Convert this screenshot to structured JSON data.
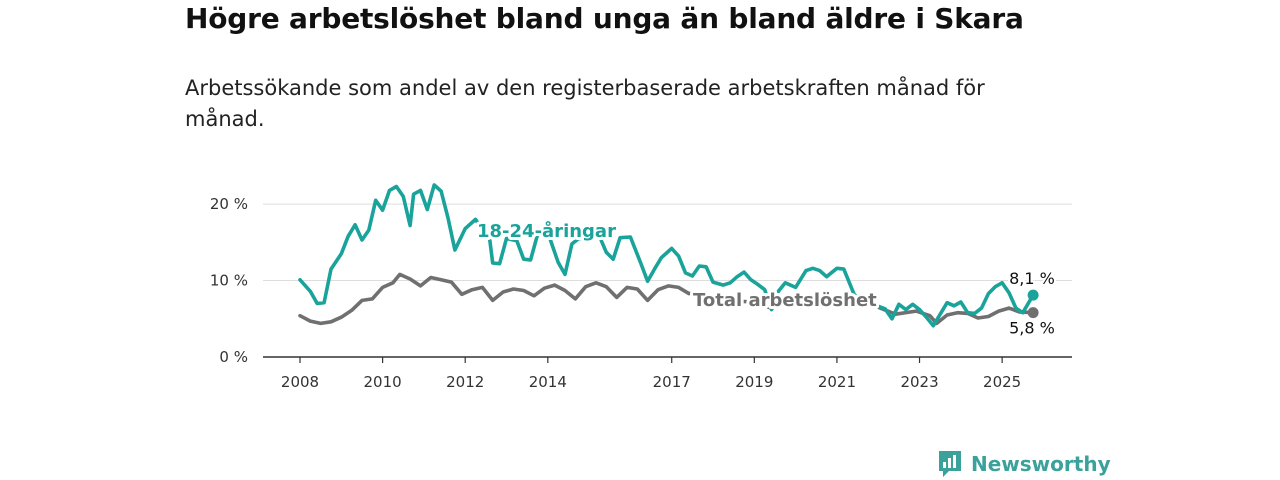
{
  "title": "Högre arbetslöshet bland unga än bland äldre i Skara",
  "subtitle": "Arbetssökande som andel av den registerbaserade arbetskraften månad för månad.",
  "logo_text": "Newsworthy",
  "colors": {
    "youth": "#1aa39a",
    "total": "#707070",
    "grid": "#dddddd",
    "axis": "#333333"
  },
  "chart_data": {
    "type": "line",
    "title": "",
    "xlabel": "",
    "ylabel": "",
    "x_ticks": [
      "2008",
      "2010",
      "2012",
      "2014",
      "2017",
      "2019",
      "2021",
      "2023",
      "2025"
    ],
    "y_ticks": [
      "0 %",
      "10 %",
      "20 %"
    ],
    "ylim": [
      0,
      22.5
    ],
    "xlim": [
      "2008-01",
      "2025-12"
    ],
    "grid": true,
    "series": [
      {
        "name": "18-24-åringar",
        "end_label": "8,1 %",
        "points": [
          [
            "2008-01",
            10.1
          ],
          [
            "2008-04",
            8.6
          ],
          [
            "2008-06",
            7.0
          ],
          [
            "2008-08",
            7.1
          ],
          [
            "2008-10",
            11.5
          ],
          [
            "2009-01",
            13.5
          ],
          [
            "2009-03",
            15.8
          ],
          [
            "2009-05",
            17.3
          ],
          [
            "2009-07",
            15.3
          ],
          [
            "2009-09",
            16.6
          ],
          [
            "2009-11",
            20.5
          ],
          [
            "2010-01",
            19.2
          ],
          [
            "2010-03",
            21.8
          ],
          [
            "2010-05",
            22.3
          ],
          [
            "2010-07",
            21.0
          ],
          [
            "2010-09",
            17.2
          ],
          [
            "2010-10",
            21.3
          ],
          [
            "2010-12",
            21.8
          ],
          [
            "2011-02",
            19.3
          ],
          [
            "2011-04",
            22.5
          ],
          [
            "2011-06",
            21.7
          ],
          [
            "2011-08",
            18.2
          ],
          [
            "2011-10",
            14.0
          ],
          [
            "2012-01",
            16.8
          ],
          [
            "2012-04",
            18.0
          ],
          [
            "2012-06",
            16.7
          ],
          [
            "2012-08",
            15.8
          ],
          [
            "2012-09",
            12.3
          ],
          [
            "2012-11",
            12.2
          ],
          [
            "2013-01",
            15.5
          ],
          [
            "2013-04",
            15.2
          ],
          [
            "2013-06",
            12.8
          ],
          [
            "2013-08",
            12.7
          ],
          [
            "2013-10",
            16.0
          ],
          [
            "2014-01",
            16.3
          ],
          [
            "2014-04",
            12.4
          ],
          [
            "2014-06",
            10.8
          ],
          [
            "2014-08",
            14.8
          ],
          [
            "2014-10",
            15.5
          ],
          [
            "2015-01",
            15.5
          ],
          [
            "2015-04",
            15.8
          ],
          [
            "2015-06",
            13.7
          ],
          [
            "2015-08",
            12.8
          ],
          [
            "2015-10",
            15.6
          ],
          [
            "2016-01",
            15.7
          ],
          [
            "2016-04",
            12.3
          ],
          [
            "2016-06",
            9.9
          ],
          [
            "2016-08",
            11.5
          ],
          [
            "2016-10",
            13.0
          ],
          [
            "2017-01",
            14.2
          ],
          [
            "2017-03",
            13.2
          ],
          [
            "2017-05",
            11.0
          ],
          [
            "2017-07",
            10.6
          ],
          [
            "2017-09",
            11.9
          ],
          [
            "2017-11",
            11.8
          ],
          [
            "2018-01",
            9.8
          ],
          [
            "2018-04",
            9.4
          ],
          [
            "2018-06",
            9.7
          ],
          [
            "2018-08",
            10.5
          ],
          [
            "2018-10",
            11.1
          ],
          [
            "2018-12",
            10.1
          ],
          [
            "2019-02",
            9.5
          ],
          [
            "2019-04",
            8.8
          ],
          [
            "2019-06",
            6.2
          ],
          [
            "2019-08",
            8.6
          ],
          [
            "2019-10",
            9.7
          ],
          [
            "2020-01",
            9.1
          ],
          [
            "2020-04",
            11.3
          ],
          [
            "2020-06",
            11.6
          ],
          [
            "2020-08",
            11.3
          ],
          [
            "2020-10",
            10.5
          ],
          [
            "2021-01",
            11.6
          ],
          [
            "2021-03",
            11.5
          ],
          [
            "2021-06",
            8.2
          ],
          [
            "2021-09",
            6.9
          ],
          [
            "2021-12",
            6.8
          ],
          [
            "2022-03",
            6.3
          ],
          [
            "2022-05",
            5.0
          ],
          [
            "2022-07",
            6.9
          ],
          [
            "2022-09",
            6.2
          ],
          [
            "2022-11",
            6.9
          ],
          [
            "2023-01",
            6.2
          ],
          [
            "2023-03",
            5.2
          ],
          [
            "2023-05",
            4.1
          ],
          [
            "2023-07",
            5.6
          ],
          [
            "2023-09",
            7.1
          ],
          [
            "2023-11",
            6.7
          ],
          [
            "2024-01",
            7.2
          ],
          [
            "2024-03",
            5.8
          ],
          [
            "2024-05",
            5.7
          ],
          [
            "2024-07",
            6.4
          ],
          [
            "2024-09",
            8.3
          ],
          [
            "2024-11",
            9.2
          ],
          [
            "2025-01",
            9.7
          ],
          [
            "2025-03",
            8.4
          ],
          [
            "2025-05",
            6.4
          ],
          [
            "2025-07",
            5.8
          ],
          [
            "2025-10",
            8.1
          ]
        ]
      },
      {
        "name": "Total arbetslöshet",
        "end_label": "5,8 %",
        "points": [
          [
            "2008-01",
            5.4
          ],
          [
            "2008-04",
            4.7
          ],
          [
            "2008-07",
            4.4
          ],
          [
            "2008-10",
            4.6
          ],
          [
            "2009-01",
            5.2
          ],
          [
            "2009-04",
            6.1
          ],
          [
            "2009-07",
            7.4
          ],
          [
            "2009-10",
            7.6
          ],
          [
            "2010-01",
            9.1
          ],
          [
            "2010-04",
            9.7
          ],
          [
            "2010-06",
            10.8
          ],
          [
            "2010-09",
            10.2
          ],
          [
            "2010-12",
            9.3
          ],
          [
            "2011-03",
            10.4
          ],
          [
            "2011-06",
            10.1
          ],
          [
            "2011-09",
            9.8
          ],
          [
            "2011-12",
            8.2
          ],
          [
            "2012-03",
            8.8
          ],
          [
            "2012-06",
            9.1
          ],
          [
            "2012-09",
            7.4
          ],
          [
            "2012-12",
            8.5
          ],
          [
            "2013-03",
            8.9
          ],
          [
            "2013-06",
            8.7
          ],
          [
            "2013-09",
            8.0
          ],
          [
            "2013-12",
            9.0
          ],
          [
            "2014-03",
            9.4
          ],
          [
            "2014-06",
            8.7
          ],
          [
            "2014-09",
            7.6
          ],
          [
            "2014-12",
            9.2
          ],
          [
            "2015-03",
            9.7
          ],
          [
            "2015-06",
            9.2
          ],
          [
            "2015-09",
            7.8
          ],
          [
            "2015-12",
            9.1
          ],
          [
            "2016-03",
            8.9
          ],
          [
            "2016-06",
            7.4
          ],
          [
            "2016-09",
            8.8
          ],
          [
            "2016-12",
            9.3
          ],
          [
            "2017-03",
            9.1
          ],
          [
            "2017-06",
            8.3
          ],
          [
            "2017-09",
            8.5
          ],
          [
            "2017-12",
            8.0
          ],
          [
            "2018-06",
            7.4
          ],
          [
            "2018-12",
            7.2
          ],
          [
            "2019-06",
            6.4
          ],
          [
            "2019-12",
            7.3
          ],
          [
            "2020-06",
            7.3
          ],
          [
            "2020-12",
            7.6
          ],
          [
            "2021-06",
            7.3
          ],
          [
            "2021-12",
            6.7
          ],
          [
            "2022-06",
            5.6
          ],
          [
            "2022-12",
            6.0
          ],
          [
            "2023-04",
            5.4
          ],
          [
            "2023-06",
            4.4
          ],
          [
            "2023-09",
            5.5
          ],
          [
            "2023-12",
            5.8
          ],
          [
            "2024-03",
            5.7
          ],
          [
            "2024-06",
            5.1
          ],
          [
            "2024-09",
            5.3
          ],
          [
            "2024-12",
            6.0
          ],
          [
            "2025-03",
            6.4
          ],
          [
            "2025-06",
            5.9
          ],
          [
            "2025-10",
            5.8
          ]
        ]
      }
    ]
  }
}
